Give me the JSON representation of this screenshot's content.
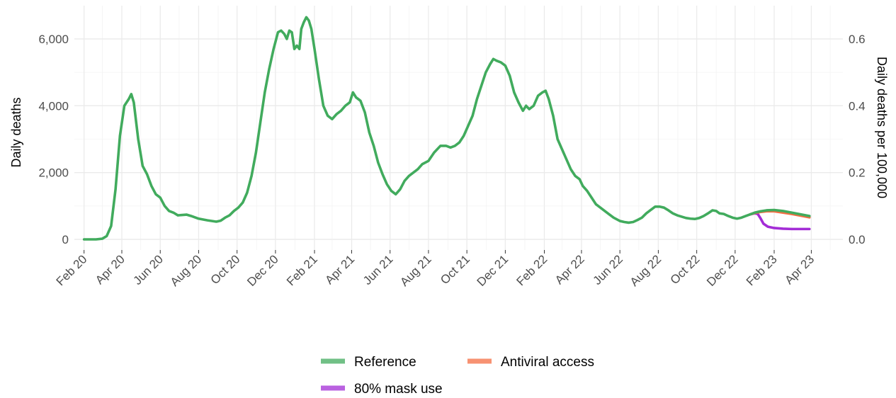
{
  "chart_data": {
    "type": "line",
    "x_unit": "date",
    "ylabel": "Daily deaths",
    "ylabel_right": "Daily deaths per 100,000",
    "ylim": [
      0,
      6000
    ],
    "y_ticks": [
      {
        "value": 0,
        "label": "0"
      },
      {
        "value": 2000,
        "label": "2,000"
      },
      {
        "value": 4000,
        "label": "4,000"
      },
      {
        "value": 6000,
        "label": "6,000"
      }
    ],
    "y_right_ticks": [
      {
        "value": 0,
        "label": "0.0"
      },
      {
        "value": 0.2,
        "label": "0.2"
      },
      {
        "value": 0.4,
        "label": "0.4"
      },
      {
        "value": 0.6,
        "label": "0.6"
      }
    ],
    "x_ticks": [
      {
        "date": "2020-02-01",
        "label": "Feb 20"
      },
      {
        "date": "2020-04-01",
        "label": "Apr 20"
      },
      {
        "date": "2020-06-01",
        "label": "Jun 20"
      },
      {
        "date": "2020-08-01",
        "label": "Aug 20"
      },
      {
        "date": "2020-10-01",
        "label": "Oct 20"
      },
      {
        "date": "2020-12-01",
        "label": "Dec 20"
      },
      {
        "date": "2021-02-01",
        "label": "Feb 21"
      },
      {
        "date": "2021-04-01",
        "label": "Apr 21"
      },
      {
        "date": "2021-06-01",
        "label": "Jun 21"
      },
      {
        "date": "2021-08-01",
        "label": "Aug 21"
      },
      {
        "date": "2021-10-01",
        "label": "Oct 21"
      },
      {
        "date": "2021-12-01",
        "label": "Dec 21"
      },
      {
        "date": "2022-02-01",
        "label": "Feb 22"
      },
      {
        "date": "2022-04-01",
        "label": "Apr 22"
      },
      {
        "date": "2022-06-01",
        "label": "Jun 22"
      },
      {
        "date": "2022-08-01",
        "label": "Aug 22"
      },
      {
        "date": "2022-10-01",
        "label": "Oct 22"
      },
      {
        "date": "2022-12-01",
        "label": "Dec 22"
      },
      {
        "date": "2023-02-01",
        "label": "Feb 23"
      },
      {
        "date": "2023-04-01",
        "label": "Apr 23"
      }
    ],
    "grid": true,
    "legend_position": "bottom",
    "series": [
      {
        "name": "Reference",
        "color": "#41ab5d",
        "points": [
          [
            "2020-02-01",
            0
          ],
          [
            "2020-02-20",
            0
          ],
          [
            "2020-03-01",
            20
          ],
          [
            "2020-03-08",
            100
          ],
          [
            "2020-03-15",
            400
          ],
          [
            "2020-03-22",
            1500
          ],
          [
            "2020-03-29",
            3100
          ],
          [
            "2020-04-05",
            4000
          ],
          [
            "2020-04-12",
            4200
          ],
          [
            "2020-04-16",
            4350
          ],
          [
            "2020-04-20",
            4100
          ],
          [
            "2020-04-27",
            3000
          ],
          [
            "2020-05-04",
            2200
          ],
          [
            "2020-05-11",
            1950
          ],
          [
            "2020-05-18",
            1600
          ],
          [
            "2020-05-25",
            1350
          ],
          [
            "2020-06-01",
            1250
          ],
          [
            "2020-06-08",
            1000
          ],
          [
            "2020-06-15",
            850
          ],
          [
            "2020-06-22",
            800
          ],
          [
            "2020-06-29",
            720
          ],
          [
            "2020-07-06",
            730
          ],
          [
            "2020-07-13",
            740
          ],
          [
            "2020-07-20",
            700
          ],
          [
            "2020-08-01",
            620
          ],
          [
            "2020-08-15",
            570
          ],
          [
            "2020-08-29",
            530
          ],
          [
            "2020-09-05",
            560
          ],
          [
            "2020-09-12",
            650
          ],
          [
            "2020-09-19",
            720
          ],
          [
            "2020-09-26",
            850
          ],
          [
            "2020-10-03",
            950
          ],
          [
            "2020-10-10",
            1100
          ],
          [
            "2020-10-17",
            1400
          ],
          [
            "2020-10-24",
            1900
          ],
          [
            "2020-10-31",
            2600
          ],
          [
            "2020-11-07",
            3500
          ],
          [
            "2020-11-14",
            4400
          ],
          [
            "2020-11-21",
            5100
          ],
          [
            "2020-11-28",
            5700
          ],
          [
            "2020-12-05",
            6200
          ],
          [
            "2020-12-10",
            6250
          ],
          [
            "2020-12-15",
            6150
          ],
          [
            "2020-12-19",
            6000
          ],
          [
            "2020-12-23",
            6250
          ],
          [
            "2020-12-27",
            6200
          ],
          [
            "2020-12-31",
            5700
          ],
          [
            "2021-01-04",
            5800
          ],
          [
            "2021-01-08",
            5700
          ],
          [
            "2021-01-11",
            6300
          ],
          [
            "2021-01-15",
            6500
          ],
          [
            "2021-01-19",
            6650
          ],
          [
            "2021-01-23",
            6550
          ],
          [
            "2021-01-27",
            6300
          ],
          [
            "2021-02-01",
            5700
          ],
          [
            "2021-02-08",
            4800
          ],
          [
            "2021-02-15",
            4000
          ],
          [
            "2021-02-22",
            3700
          ],
          [
            "2021-03-01",
            3600
          ],
          [
            "2021-03-08",
            3750
          ],
          [
            "2021-03-15",
            3850
          ],
          [
            "2021-03-22",
            4000
          ],
          [
            "2021-03-29",
            4100
          ],
          [
            "2021-04-03",
            4400
          ],
          [
            "2021-04-08",
            4250
          ],
          [
            "2021-04-15",
            4150
          ],
          [
            "2021-04-22",
            3800
          ],
          [
            "2021-04-29",
            3200
          ],
          [
            "2021-05-06",
            2800
          ],
          [
            "2021-05-13",
            2300
          ],
          [
            "2021-05-20",
            1950
          ],
          [
            "2021-05-27",
            1650
          ],
          [
            "2021-06-03",
            1450
          ],
          [
            "2021-06-10",
            1350
          ],
          [
            "2021-06-17",
            1500
          ],
          [
            "2021-06-24",
            1750
          ],
          [
            "2021-07-01",
            1900
          ],
          [
            "2021-07-08",
            2000
          ],
          [
            "2021-07-15",
            2100
          ],
          [
            "2021-07-22",
            2250
          ],
          [
            "2021-08-01",
            2350
          ],
          [
            "2021-08-10",
            2600
          ],
          [
            "2021-08-20",
            2800
          ],
          [
            "2021-08-29",
            2800
          ],
          [
            "2021-09-05",
            2750
          ],
          [
            "2021-09-12",
            2800
          ],
          [
            "2021-09-19",
            2900
          ],
          [
            "2021-09-26",
            3100
          ],
          [
            "2021-10-03",
            3400
          ],
          [
            "2021-10-10",
            3700
          ],
          [
            "2021-10-17",
            4200
          ],
          [
            "2021-10-24",
            4600
          ],
          [
            "2021-10-31",
            5000
          ],
          [
            "2021-11-07",
            5250
          ],
          [
            "2021-11-12",
            5400
          ],
          [
            "2021-11-17",
            5350
          ],
          [
            "2021-11-24",
            5300
          ],
          [
            "2021-12-01",
            5200
          ],
          [
            "2021-12-08",
            4900
          ],
          [
            "2021-12-15",
            4400
          ],
          [
            "2021-12-22",
            4100
          ],
          [
            "2021-12-29",
            3850
          ],
          [
            "2022-01-03",
            4000
          ],
          [
            "2022-01-08",
            3900
          ],
          [
            "2022-01-15",
            4000
          ],
          [
            "2022-01-22",
            4300
          ],
          [
            "2022-01-29",
            4400
          ],
          [
            "2022-02-03",
            4450
          ],
          [
            "2022-02-08",
            4200
          ],
          [
            "2022-02-15",
            3700
          ],
          [
            "2022-02-22",
            3000
          ],
          [
            "2022-03-01",
            2700
          ],
          [
            "2022-03-08",
            2400
          ],
          [
            "2022-03-15",
            2100
          ],
          [
            "2022-03-22",
            1900
          ],
          [
            "2022-03-29",
            1800
          ],
          [
            "2022-04-03",
            1600
          ],
          [
            "2022-04-10",
            1450
          ],
          [
            "2022-04-17",
            1250
          ],
          [
            "2022-04-24",
            1050
          ],
          [
            "2022-05-01",
            950
          ],
          [
            "2022-05-08",
            850
          ],
          [
            "2022-05-15",
            750
          ],
          [
            "2022-05-22",
            650
          ],
          [
            "2022-06-01",
            550
          ],
          [
            "2022-06-08",
            520
          ],
          [
            "2022-06-15",
            500
          ],
          [
            "2022-06-22",
            520
          ],
          [
            "2022-06-29",
            580
          ],
          [
            "2022-07-06",
            650
          ],
          [
            "2022-07-13",
            780
          ],
          [
            "2022-07-20",
            880
          ],
          [
            "2022-07-27",
            980
          ],
          [
            "2022-08-03",
            980
          ],
          [
            "2022-08-10",
            950
          ],
          [
            "2022-08-17",
            870
          ],
          [
            "2022-08-24",
            780
          ],
          [
            "2022-08-31",
            720
          ],
          [
            "2022-09-07",
            680
          ],
          [
            "2022-09-14",
            640
          ],
          [
            "2022-09-21",
            620
          ],
          [
            "2022-09-28",
            610
          ],
          [
            "2022-10-05",
            640
          ],
          [
            "2022-10-12",
            700
          ],
          [
            "2022-10-19",
            780
          ],
          [
            "2022-10-26",
            870
          ],
          [
            "2022-11-01",
            850
          ],
          [
            "2022-11-06",
            780
          ],
          [
            "2022-11-13",
            760
          ],
          [
            "2022-11-20",
            700
          ],
          [
            "2022-11-27",
            650
          ],
          [
            "2022-12-04",
            620
          ],
          [
            "2022-12-11",
            650
          ],
          [
            "2022-12-18",
            700
          ],
          [
            "2022-12-25",
            750
          ],
          [
            "2023-01-01",
            800
          ],
          [
            "2023-01-10",
            840
          ],
          [
            "2023-01-20",
            870
          ],
          [
            "2023-02-01",
            880
          ],
          [
            "2023-02-15",
            850
          ],
          [
            "2023-03-01",
            800
          ],
          [
            "2023-03-15",
            750
          ],
          [
            "2023-03-29",
            700
          ]
        ]
      },
      {
        "name": "Antiviral access",
        "color": "#f46d43",
        "points": [
          [
            "2022-12-25",
            750
          ],
          [
            "2023-01-01",
            790
          ],
          [
            "2023-01-10",
            820
          ],
          [
            "2023-01-20",
            840
          ],
          [
            "2023-02-01",
            840
          ],
          [
            "2023-02-15",
            800
          ],
          [
            "2023-03-01",
            760
          ],
          [
            "2023-03-15",
            710
          ],
          [
            "2023-03-29",
            660
          ]
        ]
      },
      {
        "name": "80% mask use",
        "color": "#a32cd6",
        "points": [
          [
            "2022-12-25",
            750
          ],
          [
            "2023-01-01",
            780
          ],
          [
            "2023-01-06",
            760
          ],
          [
            "2023-01-10",
            640
          ],
          [
            "2023-01-15",
            470
          ],
          [
            "2023-01-22",
            380
          ],
          [
            "2023-02-01",
            340
          ],
          [
            "2023-02-15",
            320
          ],
          [
            "2023-03-01",
            310
          ],
          [
            "2023-03-15",
            310
          ],
          [
            "2023-03-29",
            310
          ]
        ]
      }
    ]
  }
}
